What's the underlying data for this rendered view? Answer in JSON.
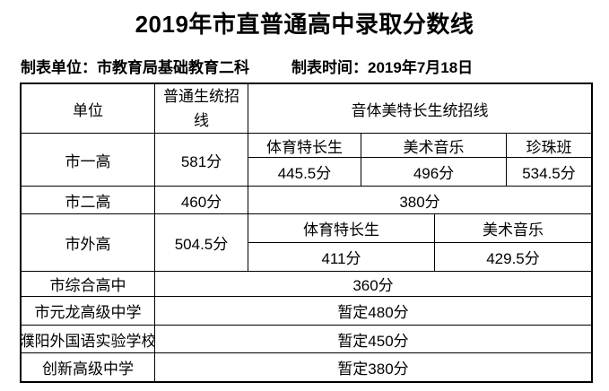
{
  "page": {
    "title": "2019年市直普通高中录取分数线"
  },
  "meta": {
    "unit_label": "制表单位：市教育局基础教育二科",
    "time_label": "制表时间：2019年7月18日"
  },
  "table": {
    "header": {
      "unit": "单位",
      "regular": "普通生统招线",
      "special": "音体美特长生统招线"
    },
    "shiyigao": {
      "name": "市一高",
      "regular_score": "581分",
      "cols": [
        {
          "label": "体育特长生",
          "value": "445.5分"
        },
        {
          "label": "美术音乐",
          "value": "496分"
        },
        {
          "label": "珍珠班",
          "value": "534.5分"
        }
      ]
    },
    "shiergao": {
      "name": "市二高",
      "regular_score": "460分",
      "special_score": "380分"
    },
    "shiwaigao": {
      "name": "市外高",
      "regular_score": "504.5分",
      "cols": [
        {
          "label": "体育特长生",
          "value": "411分"
        },
        {
          "label": "美术音乐",
          "value": "429.5分"
        }
      ]
    },
    "simple_rows": [
      {
        "name": "市综合高中",
        "value": "360分"
      },
      {
        "name": "市元龙高级中学",
        "value": "暂定480分"
      },
      {
        "name": "濮阳外国语实验学校",
        "value": "暂定450分"
      },
      {
        "name": "创新高级中学",
        "value": "暂定380分"
      }
    ]
  },
  "colors": {
    "background": "#ffffff",
    "text": "#000000",
    "border": "#000000"
  }
}
